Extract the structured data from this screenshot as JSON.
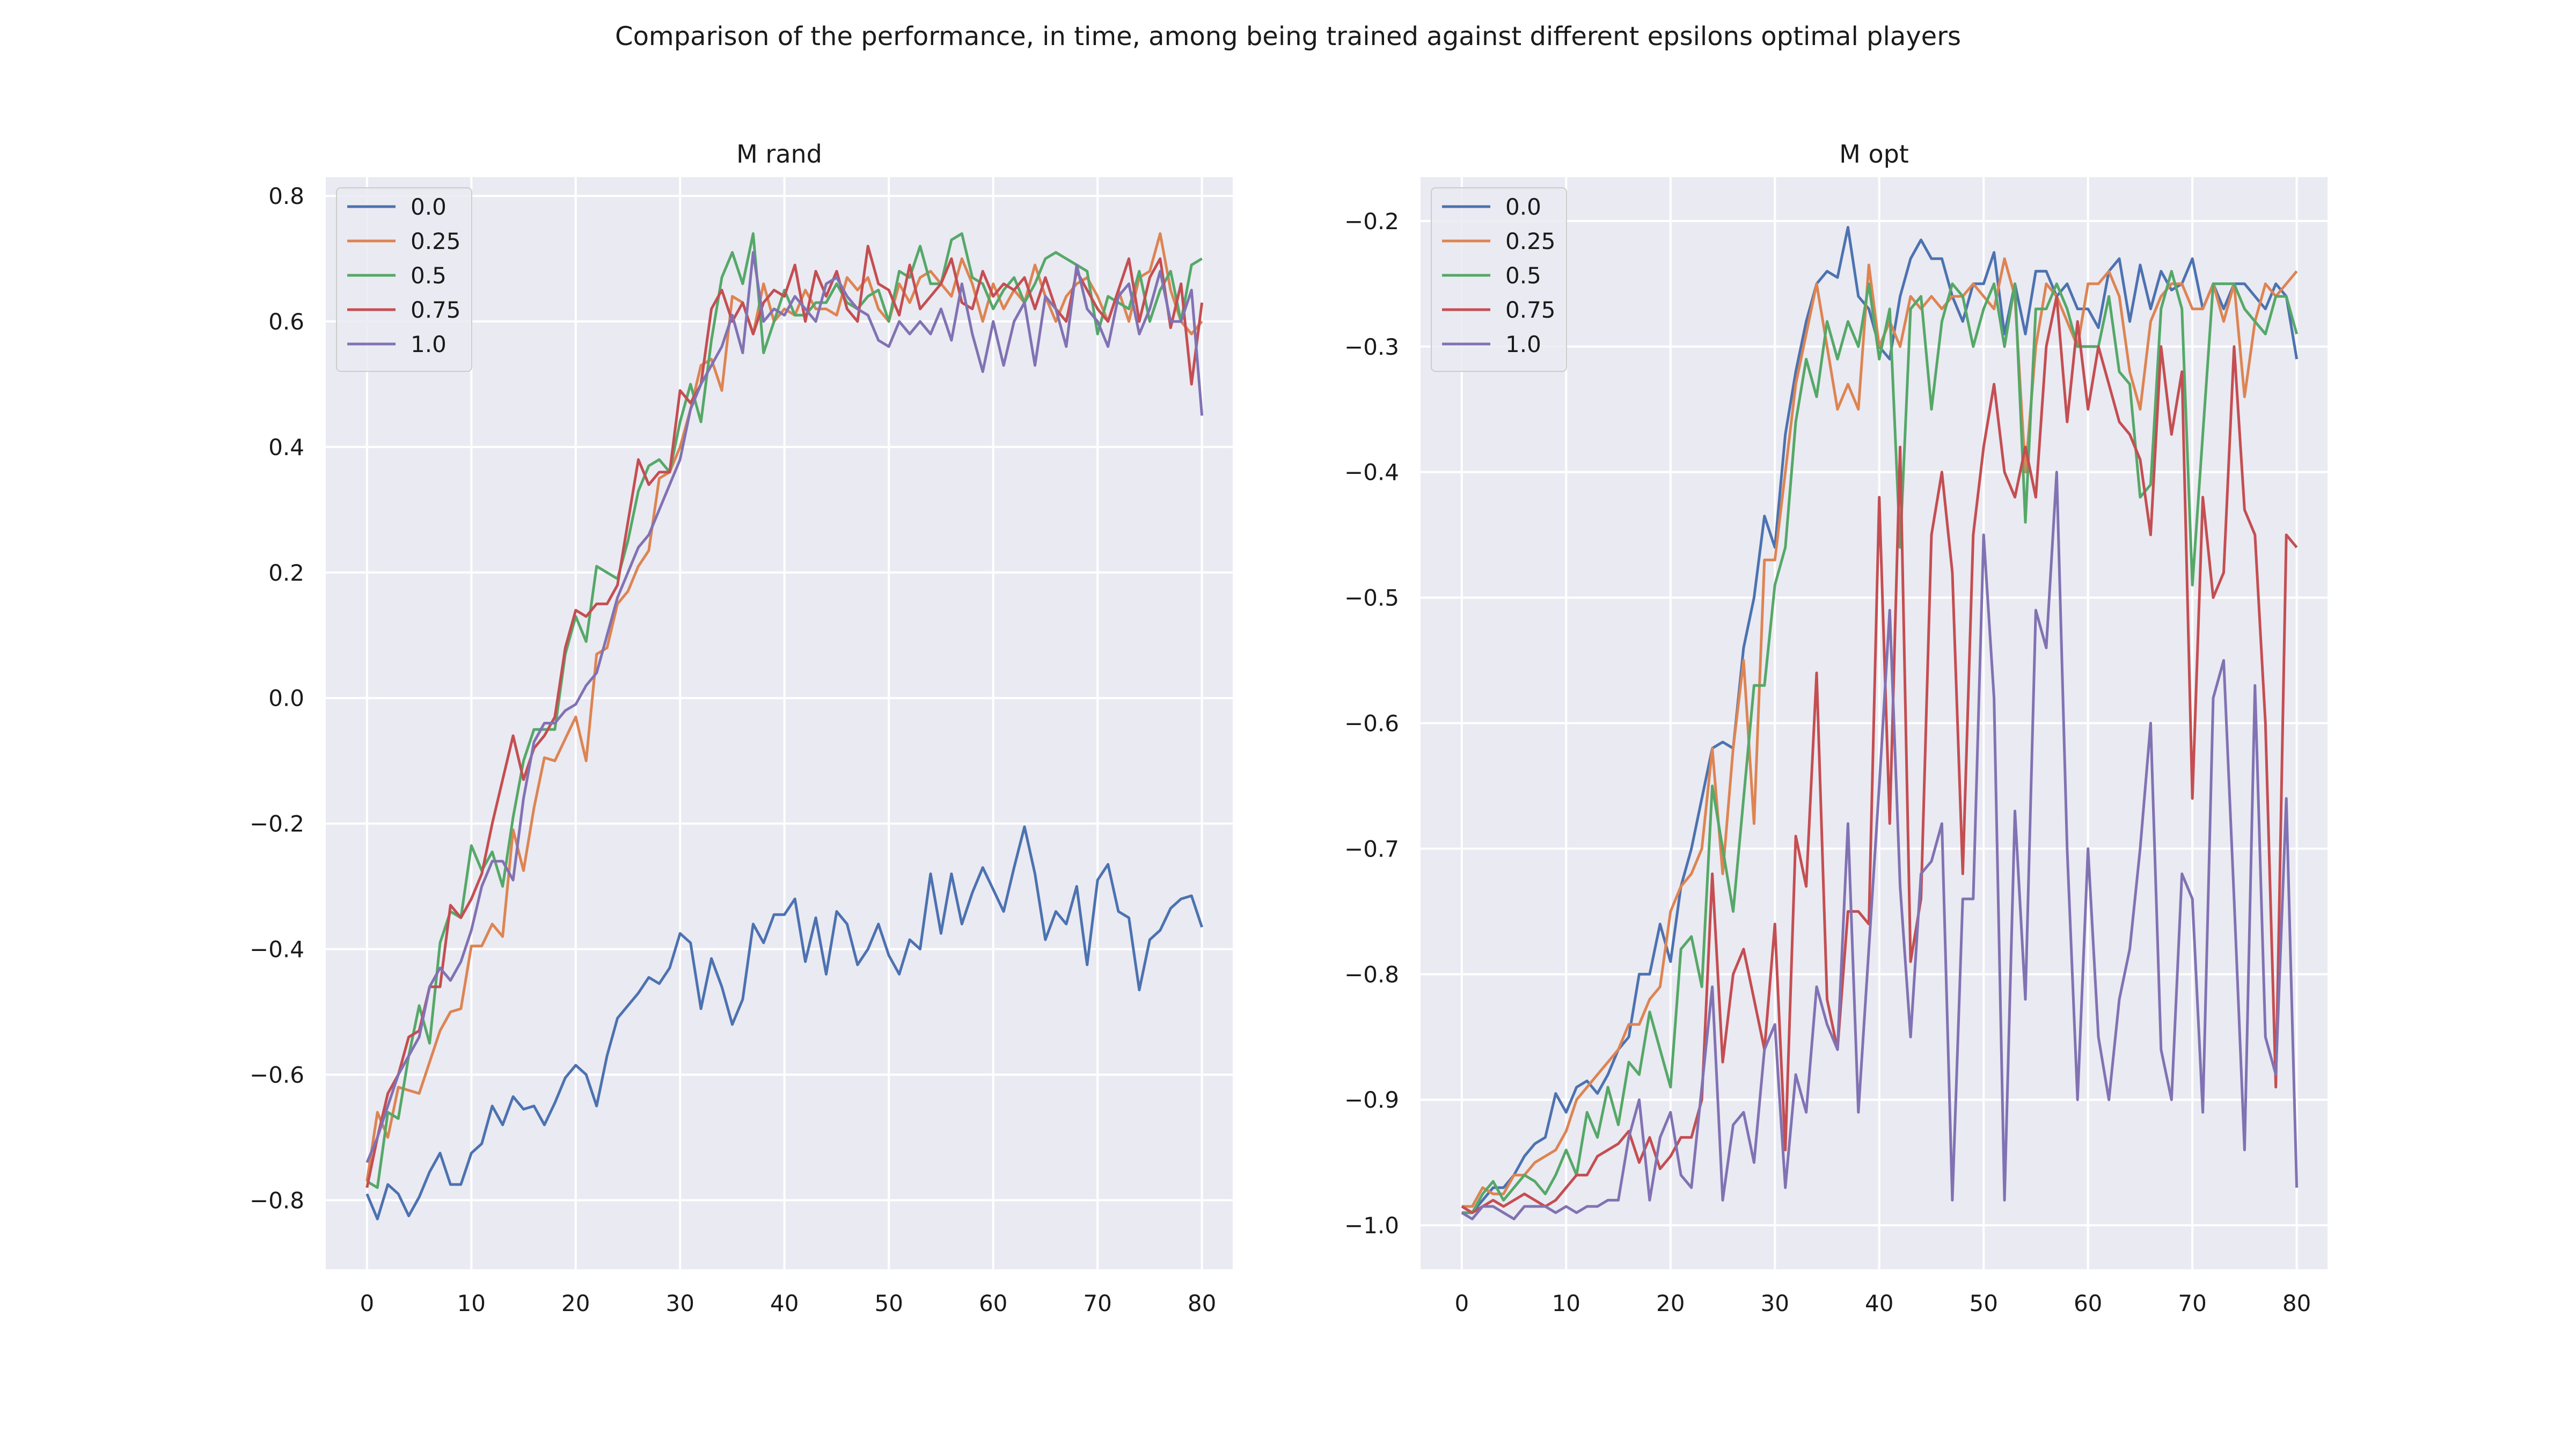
{
  "figure": {
    "title": "Comparison of the performance, in time, among being trained against different epsilons optimal players",
    "colors": {
      "background": "#eaeaf2",
      "grid": "#ffffff",
      "text": "#1a1a1a",
      "series": [
        "#4c72b0",
        "#dd8452",
        "#55a868",
        "#c44e52",
        "#8172b3"
      ]
    }
  },
  "chart_data": [
    {
      "type": "line",
      "title": "M rand",
      "xlabel": "",
      "ylabel": "",
      "xlim": [
        -3.95,
        82.95
      ],
      "ylim": [
        -0.91,
        0.83
      ],
      "xticks": [
        0,
        10,
        20,
        30,
        40,
        50,
        60,
        70,
        80
      ],
      "yticks": [
        -0.8,
        -0.6,
        -0.4,
        -0.2,
        0.0,
        0.2,
        0.4,
        0.6,
        0.8
      ],
      "ytick_labels": [
        "−0.8",
        "−0.6",
        "−0.4",
        "−0.2",
        "0.0",
        "0.2",
        "0.4",
        "0.6",
        "0.8"
      ],
      "grid": true,
      "legend": "upper left",
      "series": [
        {
          "name": "0.0",
          "values": [
            -0.79,
            -0.83,
            -0.775,
            -0.79,
            -0.825,
            -0.795,
            -0.755,
            -0.725,
            -0.775,
            -0.775,
            -0.725,
            -0.71,
            -0.65,
            -0.68,
            -0.635,
            -0.655,
            -0.65,
            -0.68,
            -0.645,
            -0.605,
            -0.585,
            -0.6,
            -0.65,
            -0.57,
            -0.51,
            -0.49,
            -0.47,
            -0.445,
            -0.455,
            -0.43,
            -0.375,
            -0.39,
            -0.495,
            -0.415,
            -0.46,
            -0.52,
            -0.48,
            -0.36,
            -0.39,
            -0.345,
            -0.345,
            -0.32,
            -0.42,
            -0.35,
            -0.44,
            -0.34,
            -0.36,
            -0.425,
            -0.4,
            -0.36,
            -0.41,
            -0.44,
            -0.385,
            -0.4,
            -0.28,
            -0.375,
            -0.28,
            -0.36,
            -0.31,
            -0.27,
            -0.305,
            -0.34,
            -0.27,
            -0.205,
            -0.28,
            -0.385,
            -0.34,
            -0.36,
            -0.3,
            -0.425,
            -0.29,
            -0.265,
            -0.34,
            -0.35,
            -0.465,
            -0.385,
            -0.37,
            -0.335,
            -0.32,
            -0.315,
            -0.365
          ]
        },
        {
          "name": "0.25",
          "values": [
            -0.77,
            -0.66,
            -0.7,
            -0.62,
            -0.625,
            -0.63,
            -0.58,
            -0.53,
            -0.5,
            -0.495,
            -0.395,
            -0.395,
            -0.36,
            -0.38,
            -0.21,
            -0.275,
            -0.175,
            -0.095,
            -0.1,
            -0.065,
            -0.03,
            -0.1,
            0.07,
            0.08,
            0.15,
            0.17,
            0.21,
            0.235,
            0.35,
            0.36,
            0.4,
            0.46,
            0.53,
            0.54,
            0.49,
            0.64,
            0.63,
            0.58,
            0.66,
            0.6,
            0.62,
            0.61,
            0.65,
            0.62,
            0.62,
            0.61,
            0.67,
            0.65,
            0.67,
            0.62,
            0.6,
            0.66,
            0.63,
            0.67,
            0.68,
            0.66,
            0.64,
            0.7,
            0.66,
            0.6,
            0.66,
            0.62,
            0.65,
            0.63,
            0.69,
            0.64,
            0.6,
            0.64,
            0.66,
            0.67,
            0.64,
            0.6,
            0.65,
            0.6,
            0.67,
            0.68,
            0.74,
            0.65,
            0.6,
            0.58,
            0.6
          ]
        },
        {
          "name": "0.5",
          "values": [
            -0.77,
            -0.78,
            -0.66,
            -0.67,
            -0.57,
            -0.49,
            -0.55,
            -0.39,
            -0.34,
            -0.35,
            -0.235,
            -0.275,
            -0.245,
            -0.3,
            -0.19,
            -0.1,
            -0.05,
            -0.05,
            -0.05,
            0.07,
            0.13,
            0.09,
            0.21,
            0.2,
            0.19,
            0.25,
            0.33,
            0.37,
            0.38,
            0.36,
            0.44,
            0.5,
            0.44,
            0.57,
            0.67,
            0.71,
            0.66,
            0.74,
            0.55,
            0.6,
            0.65,
            0.61,
            0.61,
            0.63,
            0.63,
            0.66,
            0.63,
            0.62,
            0.64,
            0.65,
            0.6,
            0.68,
            0.67,
            0.72,
            0.66,
            0.66,
            0.73,
            0.74,
            0.67,
            0.66,
            0.62,
            0.65,
            0.67,
            0.63,
            0.66,
            0.7,
            0.71,
            0.7,
            0.69,
            0.68,
            0.58,
            0.64,
            0.63,
            0.62,
            0.68,
            0.6,
            0.65,
            0.68,
            0.6,
            0.69,
            0.7
          ]
        },
        {
          "name": "0.75",
          "values": [
            -0.78,
            -0.7,
            -0.63,
            -0.6,
            -0.54,
            -0.53,
            -0.46,
            -0.46,
            -0.33,
            -0.35,
            -0.32,
            -0.28,
            -0.2,
            -0.13,
            -0.06,
            -0.13,
            -0.08,
            -0.06,
            -0.03,
            0.08,
            0.14,
            0.13,
            0.15,
            0.15,
            0.18,
            0.28,
            0.38,
            0.34,
            0.36,
            0.36,
            0.49,
            0.47,
            0.5,
            0.62,
            0.65,
            0.6,
            0.63,
            0.58,
            0.63,
            0.65,
            0.64,
            0.69,
            0.6,
            0.68,
            0.64,
            0.68,
            0.62,
            0.6,
            0.72,
            0.66,
            0.65,
            0.61,
            0.69,
            0.62,
            0.64,
            0.66,
            0.7,
            0.63,
            0.62,
            0.68,
            0.64,
            0.66,
            0.65,
            0.67,
            0.62,
            0.67,
            0.62,
            0.6,
            0.68,
            0.65,
            0.62,
            0.6,
            0.65,
            0.7,
            0.6,
            0.67,
            0.7,
            0.59,
            0.66,
            0.5,
            0.63
          ]
        },
        {
          "name": "1.0",
          "values": [
            -0.74,
            -0.7,
            -0.65,
            -0.6,
            -0.57,
            -0.54,
            -0.46,
            -0.43,
            -0.45,
            -0.42,
            -0.37,
            -0.3,
            -0.26,
            -0.26,
            -0.29,
            -0.16,
            -0.07,
            -0.04,
            -0.04,
            -0.02,
            -0.01,
            0.02,
            0.04,
            0.1,
            0.16,
            0.2,
            0.24,
            0.26,
            0.3,
            0.34,
            0.38,
            0.46,
            0.5,
            0.53,
            0.56,
            0.61,
            0.55,
            0.71,
            0.6,
            0.62,
            0.61,
            0.64,
            0.62,
            0.6,
            0.66,
            0.67,
            0.64,
            0.62,
            0.61,
            0.57,
            0.56,
            0.6,
            0.58,
            0.6,
            0.58,
            0.62,
            0.57,
            0.66,
            0.58,
            0.52,
            0.6,
            0.53,
            0.6,
            0.63,
            0.53,
            0.64,
            0.62,
            0.56,
            0.69,
            0.62,
            0.6,
            0.56,
            0.64,
            0.66,
            0.58,
            0.62,
            0.68,
            0.6,
            0.6,
            0.65,
            0.45
          ]
        }
      ]
    },
    {
      "type": "line",
      "title": "M opt",
      "xlabel": "",
      "ylabel": "",
      "xlim": [
        -3.95,
        82.95
      ],
      "ylim": [
        -1.035,
        -0.165
      ],
      "xticks": [
        0,
        10,
        20,
        30,
        40,
        50,
        60,
        70,
        80
      ],
      "yticks": [
        -1.0,
        -0.9,
        -0.8,
        -0.7,
        -0.6,
        -0.5,
        -0.4,
        -0.3,
        -0.2
      ],
      "ytick_labels": [
        "−1.0",
        "−0.9",
        "−0.8",
        "−0.7",
        "−0.6",
        "−0.5",
        "−0.4",
        "−0.3",
        "−0.2"
      ],
      "grid": true,
      "legend": "upper left",
      "series": [
        {
          "name": "0.0",
          "values": [
            -0.99,
            -0.99,
            -0.98,
            -0.97,
            -0.97,
            -0.96,
            -0.945,
            -0.935,
            -0.93,
            -0.895,
            -0.91,
            -0.89,
            -0.885,
            -0.895,
            -0.88,
            -0.86,
            -0.85,
            -0.8,
            -0.8,
            -0.76,
            -0.79,
            -0.73,
            -0.7,
            -0.66,
            -0.62,
            -0.615,
            -0.62,
            -0.54,
            -0.5,
            -0.435,
            -0.46,
            -0.37,
            -0.32,
            -0.28,
            -0.25,
            -0.24,
            -0.245,
            -0.205,
            -0.26,
            -0.27,
            -0.3,
            -0.31,
            -0.26,
            -0.23,
            -0.215,
            -0.23,
            -0.23,
            -0.26,
            -0.28,
            -0.25,
            -0.25,
            -0.225,
            -0.29,
            -0.25,
            -0.29,
            -0.24,
            -0.24,
            -0.26,
            -0.25,
            -0.27,
            -0.27,
            -0.285,
            -0.24,
            -0.23,
            -0.28,
            -0.235,
            -0.27,
            -0.24,
            -0.255,
            -0.25,
            -0.23,
            -0.27,
            -0.25,
            -0.27,
            -0.25,
            -0.25,
            -0.26,
            -0.27,
            -0.25,
            -0.26,
            -0.31
          ]
        },
        {
          "name": "0.25",
          "values": [
            -0.985,
            -0.985,
            -0.97,
            -0.975,
            -0.975,
            -0.96,
            -0.96,
            -0.95,
            -0.945,
            -0.94,
            -0.925,
            -0.9,
            -0.89,
            -0.88,
            -0.87,
            -0.86,
            -0.84,
            -0.84,
            -0.82,
            -0.81,
            -0.75,
            -0.73,
            -0.72,
            -0.7,
            -0.62,
            -0.72,
            -0.62,
            -0.55,
            -0.68,
            -0.47,
            -0.47,
            -0.4,
            -0.33,
            -0.29,
            -0.25,
            -0.3,
            -0.35,
            -0.33,
            -0.35,
            -0.235,
            -0.3,
            -0.28,
            -0.3,
            -0.26,
            -0.27,
            -0.26,
            -0.27,
            -0.26,
            -0.26,
            -0.25,
            -0.26,
            -0.27,
            -0.23,
            -0.26,
            -0.4,
            -0.3,
            -0.25,
            -0.26,
            -0.28,
            -0.3,
            -0.25,
            -0.25,
            -0.24,
            -0.26,
            -0.32,
            -0.35,
            -0.28,
            -0.26,
            -0.25,
            -0.25,
            -0.27,
            -0.27,
            -0.25,
            -0.28,
            -0.25,
            -0.34,
            -0.28,
            -0.25,
            -0.26,
            -0.25,
            -0.24
          ]
        },
        {
          "name": "0.5",
          "values": [
            -0.99,
            -0.99,
            -0.975,
            -0.965,
            -0.98,
            -0.97,
            -0.96,
            -0.965,
            -0.975,
            -0.96,
            -0.94,
            -0.96,
            -0.91,
            -0.93,
            -0.89,
            -0.92,
            -0.87,
            -0.88,
            -0.83,
            -0.86,
            -0.89,
            -0.78,
            -0.77,
            -0.81,
            -0.65,
            -0.7,
            -0.75,
            -0.66,
            -0.57,
            -0.57,
            -0.49,
            -0.46,
            -0.36,
            -0.31,
            -0.34,
            -0.28,
            -0.31,
            -0.28,
            -0.3,
            -0.25,
            -0.31,
            -0.27,
            -0.46,
            -0.27,
            -0.26,
            -0.35,
            -0.28,
            -0.25,
            -0.26,
            -0.3,
            -0.27,
            -0.25,
            -0.3,
            -0.25,
            -0.44,
            -0.27,
            -0.27,
            -0.25,
            -0.27,
            -0.3,
            -0.3,
            -0.3,
            -0.26,
            -0.32,
            -0.33,
            -0.42,
            -0.41,
            -0.27,
            -0.24,
            -0.27,
            -0.49,
            -0.37,
            -0.25,
            -0.25,
            -0.25,
            -0.27,
            -0.28,
            -0.29,
            -0.26,
            -0.26,
            -0.29
          ]
        },
        {
          "name": "0.75",
          "values": [
            -0.985,
            -0.99,
            -0.985,
            -0.98,
            -0.985,
            -0.98,
            -0.975,
            -0.98,
            -0.985,
            -0.98,
            -0.97,
            -0.96,
            -0.96,
            -0.945,
            -0.94,
            -0.935,
            -0.925,
            -0.95,
            -0.93,
            -0.955,
            -0.945,
            -0.93,
            -0.93,
            -0.9,
            -0.72,
            -0.87,
            -0.8,
            -0.78,
            -0.82,
            -0.86,
            -0.76,
            -0.94,
            -0.69,
            -0.73,
            -0.56,
            -0.82,
            -0.86,
            -0.75,
            -0.75,
            -0.76,
            -0.42,
            -0.68,
            -0.38,
            -0.79,
            -0.74,
            -0.45,
            -0.4,
            -0.48,
            -0.72,
            -0.45,
            -0.38,
            -0.33,
            -0.4,
            -0.42,
            -0.38,
            -0.42,
            -0.3,
            -0.26,
            -0.36,
            -0.28,
            -0.35,
            -0.3,
            -0.33,
            -0.36,
            -0.37,
            -0.39,
            -0.45,
            -0.3,
            -0.37,
            -0.32,
            -0.66,
            -0.42,
            -0.5,
            -0.48,
            -0.3,
            -0.43,
            -0.45,
            -0.6,
            -0.89,
            -0.45,
            -0.46
          ]
        },
        {
          "name": "1.0",
          "values": [
            -0.99,
            -0.995,
            -0.985,
            -0.985,
            -0.99,
            -0.995,
            -0.985,
            -0.985,
            -0.985,
            -0.99,
            -0.985,
            -0.99,
            -0.985,
            -0.985,
            -0.98,
            -0.98,
            -0.93,
            -0.9,
            -0.98,
            -0.93,
            -0.91,
            -0.96,
            -0.97,
            -0.89,
            -0.81,
            -0.98,
            -0.92,
            -0.91,
            -0.95,
            -0.86,
            -0.84,
            -0.97,
            -0.88,
            -0.91,
            -0.81,
            -0.84,
            -0.86,
            -0.68,
            -0.91,
            -0.78,
            -0.65,
            -0.51,
            -0.73,
            -0.85,
            -0.72,
            -0.71,
            -0.68,
            -0.98,
            -0.74,
            -0.74,
            -0.45,
            -0.58,
            -0.98,
            -0.67,
            -0.82,
            -0.51,
            -0.54,
            -0.4,
            -0.7,
            -0.9,
            -0.7,
            -0.85,
            -0.9,
            -0.82,
            -0.78,
            -0.7,
            -0.6,
            -0.86,
            -0.9,
            -0.72,
            -0.74,
            -0.91,
            -0.58,
            -0.55,
            -0.74,
            -0.94,
            -0.57,
            -0.85,
            -0.88,
            -0.66,
            -0.97
          ]
        }
      ]
    }
  ]
}
